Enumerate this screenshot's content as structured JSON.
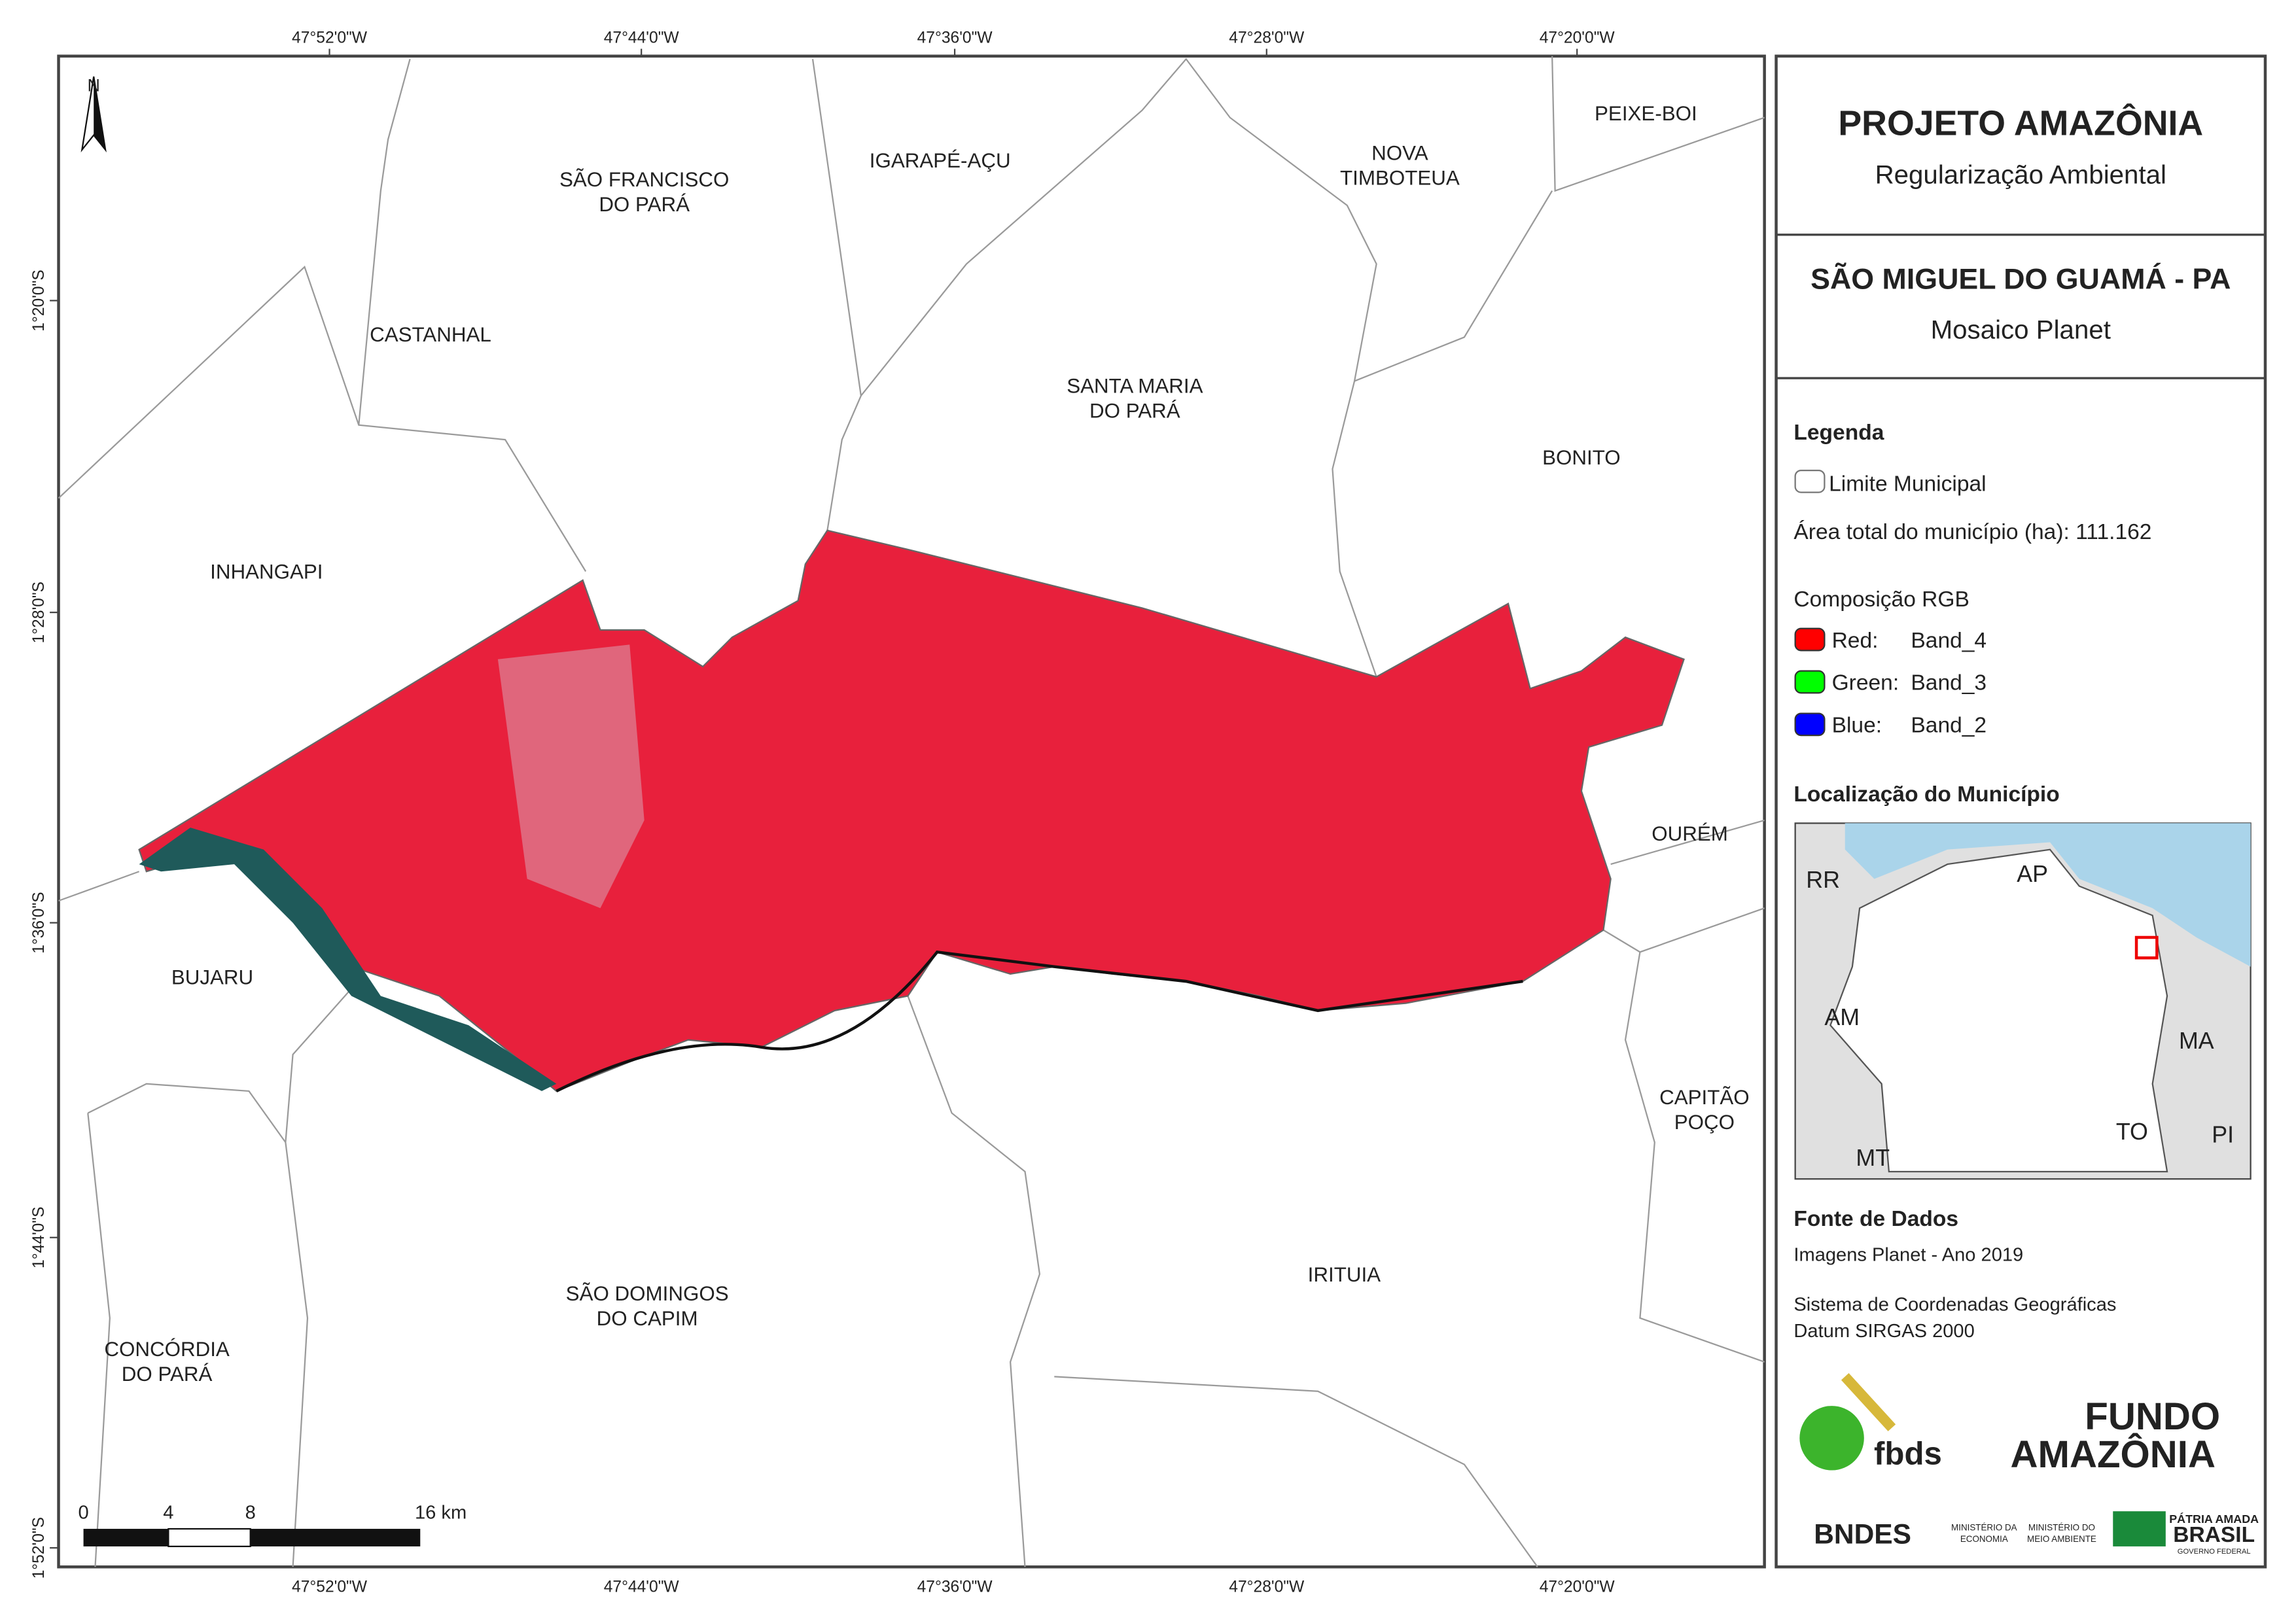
{
  "header": {
    "title": "PROJETO AMAZÔNIA",
    "subtitle": "Regularização Ambiental"
  },
  "map_title": {
    "title": "SÃO MIGUEL DO GUAMÁ - PA",
    "subtitle": "Mosaico Planet"
  },
  "legend": {
    "title": "Legenda",
    "boundary": "Limite Municipal",
    "area": "Área total do município (ha): 111.162",
    "rgb_title": "Composição RGB",
    "bands": [
      {
        "name": "Red:",
        "band": "Band_4",
        "color": "#ff0000"
      },
      {
        "name": "Green:",
        "band": "Band_3",
        "color": "#00ff00"
      },
      {
        "name": "Blue:",
        "band": "Band_2",
        "color": "#0000ff"
      }
    ]
  },
  "location": {
    "title": "Localização do Município",
    "states": [
      "RR",
      "AP",
      "AM",
      "MA",
      "TO",
      "MT",
      "PI"
    ]
  },
  "sources": {
    "title": "Fonte de Dados",
    "lines": [
      "Imagens Planet - Ano 2019",
      "Sistema de Coordenadas Geográficas",
      "Datum SIRGAS 2000"
    ]
  },
  "logos": {
    "fbds": "fbds",
    "fundo": "FUNDO",
    "amazonia": "AMAZÔNIA",
    "bndes": "BNDES",
    "min_economia": [
      "MINISTÉRIO DA",
      "ECONOMIA"
    ],
    "min_ambiente": [
      "MINISTÉRIO DO",
      "MEIO AMBIENTE"
    ],
    "patria": "PÁTRIA AMADA",
    "brasil": "BRASIL",
    "governo": "GOVERNO FEDERAL"
  },
  "north": "N",
  "longitudes": [
    "47°52'0\"W",
    "47°44'0\"W",
    "47°36'0\"W",
    "47°28'0\"W",
    "47°20'0\"W"
  ],
  "latitudes": [
    "1°20'0\"S",
    "1°28'0\"S",
    "1°36'0\"S",
    "1°44'0\"S",
    "1°52'0\"S"
  ],
  "scale": [
    "0",
    "4",
    "8",
    "16 km"
  ],
  "municipalities": [
    [
      "SÃO FRANCISCO",
      "DO PARÁ"
    ],
    [
      "IGARAPÉ-AÇU"
    ],
    [
      "NOVA",
      "TIMBOTEUA"
    ],
    [
      "PEIXE-BOI"
    ],
    [
      "CASTANHAL"
    ],
    [
      "SANTA MARIA",
      "DO PARÁ"
    ],
    [
      "BONITO"
    ],
    [
      "INHANGAPI"
    ],
    [
      "OURÉM"
    ],
    [
      "BUJARU"
    ],
    [
      "CAPITÃO",
      "POÇO"
    ],
    [
      "SÃO DOMINGOS",
      "DO CAPIM"
    ],
    [
      "IRITUIA"
    ],
    [
      "CONCÓRDIA",
      "DO PARÁ"
    ]
  ]
}
